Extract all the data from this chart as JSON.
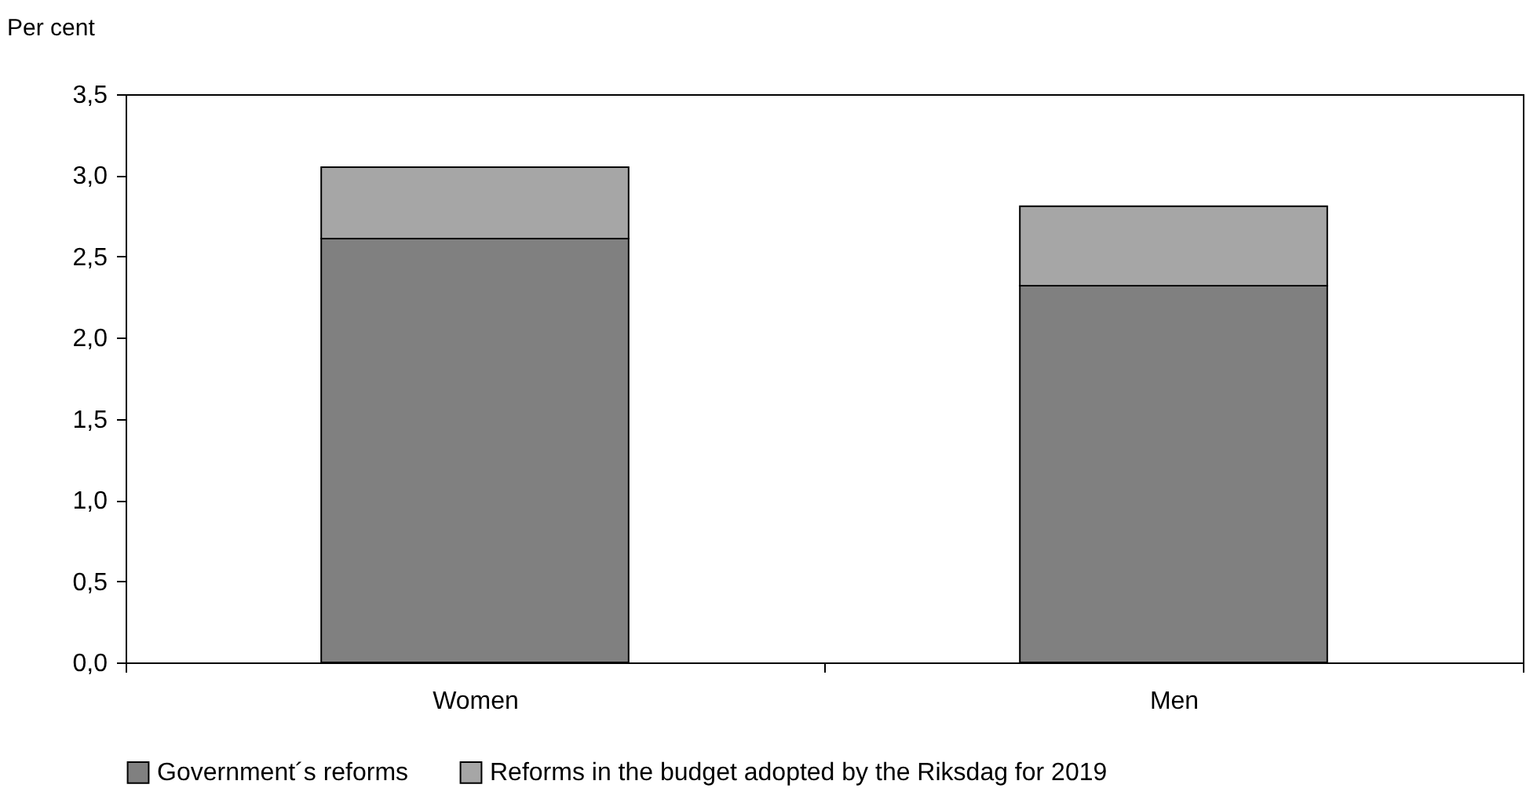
{
  "chart_data": {
    "type": "bar",
    "stacked": true,
    "ylabel": "Per cent",
    "categories": [
      "Women",
      "Men"
    ],
    "series": [
      {
        "name": "Government´s reforms",
        "color": "#808080",
        "values": [
          2.61,
          2.32
        ]
      },
      {
        "name": "Reforms in the budget adopted by the Riksdag for 2019",
        "color": "#a6a6a6",
        "values": [
          0.44,
          0.49
        ]
      }
    ],
    "ylim": [
      0,
      3.5
    ],
    "yticks": [
      {
        "value": 0,
        "label": "0,0"
      },
      {
        "value": 0.5,
        "label": "0,5"
      },
      {
        "value": 1,
        "label": "1,0"
      },
      {
        "value": 1.5,
        "label": "1,5"
      },
      {
        "value": 2,
        "label": "2,0"
      },
      {
        "value": 2.5,
        "label": "2,5"
      },
      {
        "value": 3,
        "label": "3,0"
      },
      {
        "value": 3.5,
        "label": "3,5"
      }
    ],
    "grid": false,
    "legend": "bottom"
  }
}
